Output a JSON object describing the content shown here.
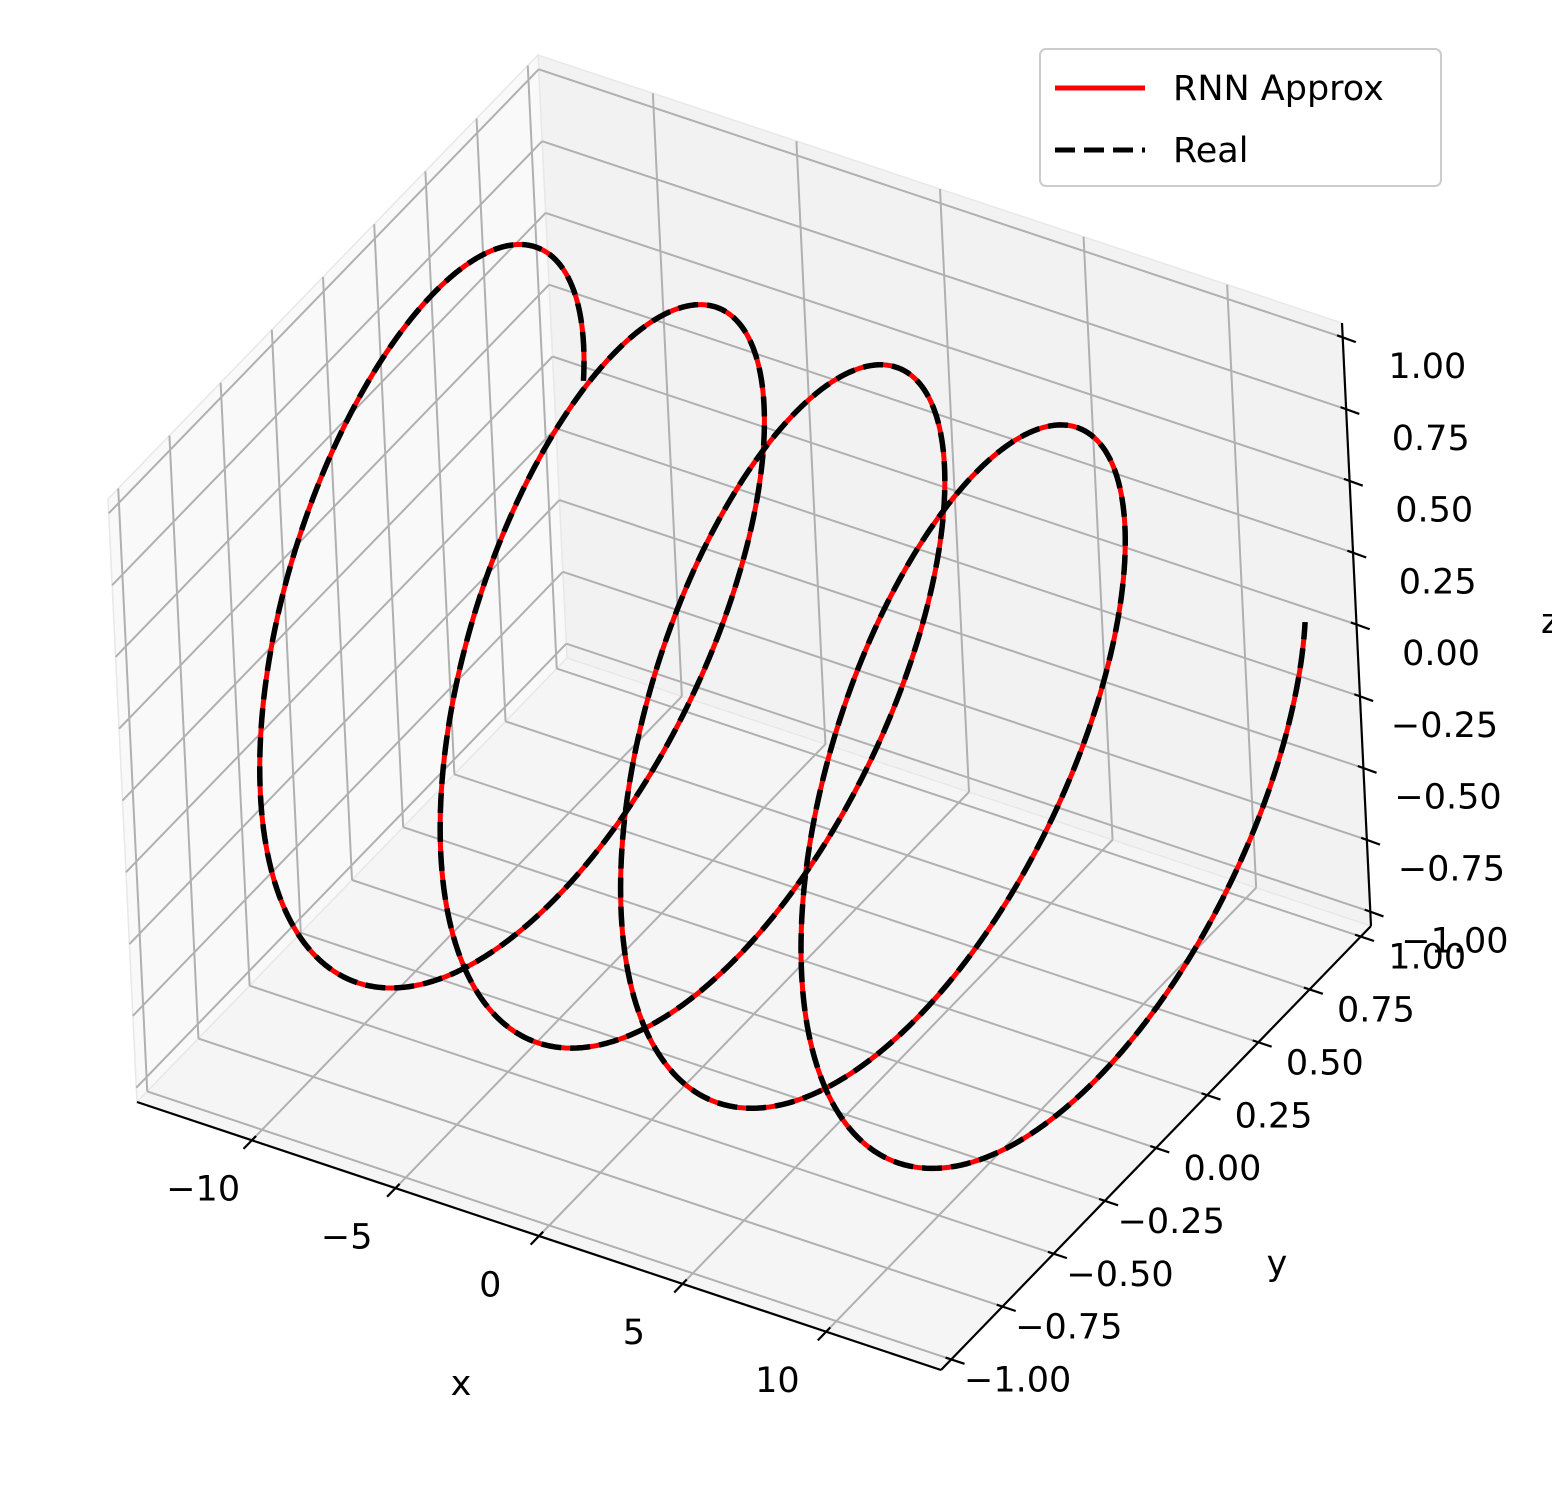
{
  "chart_data": {
    "type": "line",
    "projection": "3d",
    "title": "",
    "xlabel": "x",
    "ylabel": "y",
    "zlabel": "z",
    "xlim": [
      -14,
      14
    ],
    "ylim": [
      -1.05,
      1.05
    ],
    "zlim": [
      -1.05,
      1.05
    ],
    "xticks": [
      -10,
      -5,
      0,
      5,
      10
    ],
    "yticks": [
      -1.0,
      -0.75,
      -0.5,
      -0.25,
      0.0,
      0.25,
      0.5,
      0.75,
      1.0
    ],
    "zticks": [
      -1.0,
      -0.75,
      -0.5,
      -0.25,
      0.0,
      0.25,
      0.5,
      0.75,
      1.0
    ],
    "xtick_labels": [
      "−10",
      "−5",
      "0",
      "5",
      "10"
    ],
    "ytick_labels": [
      "−1.00",
      "−0.75",
      "−0.50",
      "−0.25",
      "0.00",
      "0.25",
      "0.50",
      "0.75",
      "1.00"
    ],
    "ztick_labels": [
      "−1.00",
      "−0.75",
      "−0.50",
      "−0.25",
      "0.00",
      "0.25",
      "0.50",
      "0.75",
      "1.00"
    ],
    "grid": true,
    "legend_position": "upper right",
    "curve": {
      "param": "t",
      "t_range": [
        0,
        25.13
      ],
      "x": "t - 12.566",
      "y": "cos(t)",
      "z": "sin(t)",
      "turns": 4
    },
    "series": [
      {
        "name": "RNN Approx",
        "color": "#ff0000",
        "style": "solid"
      },
      {
        "name": "Real",
        "color": "#000000",
        "style": "dashed"
      }
    ]
  }
}
